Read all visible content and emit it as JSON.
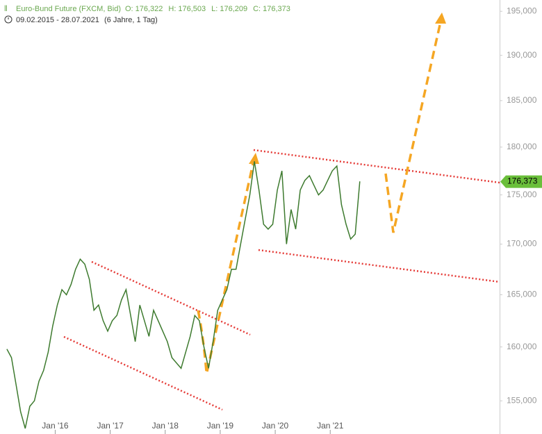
{
  "chart_data": {
    "type": "line",
    "title": "Euro-Bund Future (FXCM, Bid)",
    "ohlc": [
      {
        "name": "O:",
        "value": 176.322,
        "label": "176,322"
      },
      {
        "name": "H:",
        "value": 176.503,
        "label": "176,503"
      },
      {
        "name": "L:",
        "value": 176.209,
        "label": "176,209"
      },
      {
        "name": "C:",
        "value": 176.373,
        "label": "176,373"
      }
    ],
    "period": "09.02.2015 - 28.07.2021",
    "period_note": "(6 Jahre, 1 Tag)",
    "color": "#3d7a2e",
    "x": [
      "2015-02",
      "2015-03",
      "2015-04",
      "2015-05",
      "2015-06",
      "2015-07",
      "2015-08",
      "2015-09",
      "2015-10",
      "2015-11",
      "2015-12",
      "2016-01",
      "2016-02",
      "2016-03",
      "2016-04",
      "2016-05",
      "2016-06",
      "2016-07",
      "2016-08",
      "2016-09",
      "2016-10",
      "2016-11",
      "2016-12",
      "2017-01",
      "2017-02",
      "2017-03",
      "2017-04",
      "2017-05",
      "2017-06",
      "2017-07",
      "2017-08",
      "2017-09",
      "2017-10",
      "2017-11",
      "2017-12",
      "2018-01",
      "2018-02",
      "2018-03",
      "2018-04",
      "2018-05",
      "2018-06",
      "2018-07",
      "2018-08",
      "2018-09",
      "2018-10",
      "2018-11",
      "2018-12",
      "2019-01",
      "2019-02",
      "2019-03",
      "2019-04",
      "2019-05",
      "2019-06",
      "2019-07",
      "2019-08",
      "2019-09",
      "2019-10",
      "2019-11",
      "2019-12",
      "2020-01",
      "2020-02",
      "2020-03",
      "2020-04",
      "2020-05",
      "2020-06",
      "2020-07",
      "2020-08",
      "2020-09",
      "2020-10",
      "2020-11",
      "2020-12",
      "2021-01",
      "2021-02",
      "2021-03",
      "2021-04",
      "2021-05",
      "2021-06",
      "2021-07"
    ],
    "values": [
      159.8,
      159.0,
      156.5,
      154.0,
      152.5,
      154.5,
      155.0,
      156.8,
      157.8,
      159.5,
      162.0,
      164.0,
      165.5,
      165.0,
      166.0,
      167.5,
      168.5,
      168.0,
      166.5,
      163.5,
      164.0,
      162.5,
      161.5,
      162.5,
      163.0,
      164.5,
      165.5,
      163.0,
      160.5,
      164.0,
      162.5,
      161.0,
      163.5,
      162.5,
      161.5,
      160.5,
      159.0,
      158.5,
      158.0,
      159.5,
      161.0,
      163.0,
      162.5,
      160.0,
      158.0,
      160.5,
      163.5,
      164.5,
      165.5,
      167.5,
      167.5,
      170.0,
      172.5,
      175.0,
      178.5,
      175.5,
      172.0,
      171.5,
      172.0,
      175.5,
      177.5,
      170.0,
      173.5,
      171.5,
      175.5,
      176.5,
      177.0,
      176.0,
      175.0,
      175.5,
      176.5,
      177.5,
      178.0,
      174.0,
      172.0,
      170.5,
      171.0,
      176.4
    ],
    "xlim": [
      "2015-01",
      "2024-02"
    ],
    "xticks": [
      {
        "value": "2016-01",
        "label": "Jan '16"
      },
      {
        "value": "2017-01",
        "label": "Jan '17"
      },
      {
        "value": "2018-01",
        "label": "Jan '18"
      },
      {
        "value": "2019-01",
        "label": "Jan '19"
      },
      {
        "value": "2020-01",
        "label": "Jan '20"
      },
      {
        "value": "2021-01",
        "label": "Jan '21"
      }
    ],
    "ylim": [
      152.0,
      196.3
    ],
    "log_y": true,
    "yticks": [
      {
        "value": 155,
        "label": "155,000"
      },
      {
        "value": 160,
        "label": "160,000"
      },
      {
        "value": 165,
        "label": "165,000"
      },
      {
        "value": 170,
        "label": "170,000"
      },
      {
        "value": 175,
        "label": "175,000"
      },
      {
        "value": 180,
        "label": "180,000"
      },
      {
        "value": 185,
        "label": "185,000"
      },
      {
        "value": 190,
        "label": "190,000"
      },
      {
        "value": 195,
        "label": "195,000"
      }
    ],
    "last": {
      "value": 176.373,
      "label": "176,373",
      "color": "#6abf3a"
    }
  }
}
